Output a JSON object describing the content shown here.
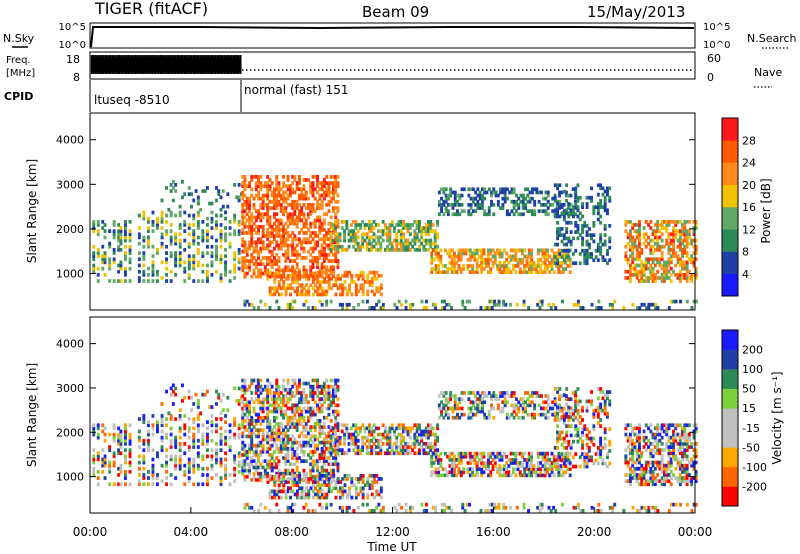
{
  "header": {
    "radar": "TIGER (fitACF)",
    "beam": "Beam 09",
    "date": "15/May/2013"
  },
  "top_panel": {
    "left_label": "N.Sky",
    "right_label": "N.Search",
    "left_ticks": [
      "10^5",
      "10^0"
    ],
    "right_ticks": [
      "10^5",
      "10^0"
    ]
  },
  "freq_panel": {
    "left_label_1": "Freq.",
    "left_label_2": "[MHz]",
    "right_label": "Nave",
    "left_ticks": [
      "18",
      "8"
    ],
    "right_ticks": [
      "60",
      "0"
    ]
  },
  "cpid": {
    "label": "CPID",
    "segments": [
      {
        "text": "ltuseq -8510",
        "start_hour": 0,
        "end_hour": 6
      },
      {
        "text": "normal (fast) 151",
        "start_hour": 6,
        "end_hour": 24
      }
    ]
  },
  "colors": {
    "power": [
      "#1a1aff",
      "#1f3fa8",
      "#2e8b57",
      "#5fa866",
      "#f2c100",
      "#ff8c1a",
      "#ff5a00",
      "#ff1a1a"
    ],
    "velocity": [
      "#ff0000",
      "#ff6600",
      "#ffa500",
      "#c0c0c0",
      "#c0c0c0",
      "#7cd03c",
      "#2e8b57",
      "#1f3fa8",
      "#1a1aff"
    ]
  },
  "chart_data": [
    {
      "type": "heatmap",
      "name": "power",
      "xlabel": "",
      "ylabel": "Slant Range [km]",
      "xlim": [
        0,
        24
      ],
      "ylim": [
        180,
        4600
      ],
      "yticks": [
        "1000",
        "2000",
        "3000",
        "4000"
      ],
      "colorbar_label": "Power [dB]",
      "colorbar_ticks": [
        "4",
        "8",
        "12",
        "16",
        "20",
        "24",
        "28"
      ],
      "color_range": [
        0,
        32
      ]
    },
    {
      "type": "heatmap",
      "name": "velocity",
      "xlabel": "Time UT",
      "ylabel": "Slant Range [km]",
      "xlim": [
        0,
        24
      ],
      "ylim": [
        180,
        4600
      ],
      "yticks": [
        "1000",
        "2000",
        "3000",
        "4000"
      ],
      "xticks": [
        "00:00",
        "04:00",
        "08:00",
        "12:00",
        "16:00",
        "20:00",
        "00:00"
      ],
      "colorbar_label": "Velocity [m s⁻¹]",
      "colorbar_ticks": [
        "200",
        "100",
        "50",
        "15",
        "-15",
        "-50",
        "-100",
        "-200"
      ]
    }
  ]
}
